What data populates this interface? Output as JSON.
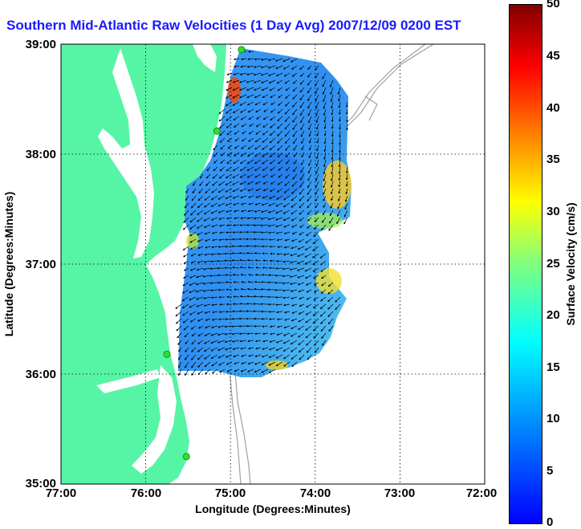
{
  "title": "Southern Mid-Atlantic Raw Velocities (1 Day Avg) 2007/12/09 0200 EST",
  "axes": {
    "xlabel": "Longitude (Degrees:Minutes)",
    "ylabel": "Latitude (Degrees:Minutes)",
    "x_ticks": [
      "77:00",
      "76:00",
      "75:00",
      "74:00",
      "73:00",
      "72:00"
    ],
    "y_ticks": [
      "39:00",
      "38:00",
      "37:00",
      "36:00",
      "35:00"
    ],
    "lon_range": [
      -77,
      -72
    ],
    "lat_range": [
      35,
      39
    ],
    "grid": "dotted"
  },
  "colorbar": {
    "label": "Surface Velocity (cm/s)",
    "ticks": [
      "50",
      "45",
      "40",
      "35",
      "30",
      "25",
      "20",
      "15",
      "10",
      "5",
      "0"
    ],
    "range": [
      0,
      50
    ],
    "colormap": "jet"
  },
  "colors": {
    "land": "#55f5a5",
    "water": "#ffffff",
    "title": "#1a1aff",
    "bathymetry": "#a0a0a0",
    "station": "#2ee02e"
  },
  "stations": [
    {
      "lon": -74.87,
      "lat": 38.95
    },
    {
      "lon": -75.16,
      "lat": 38.21
    },
    {
      "lon": -75.75,
      "lat": 36.18
    },
    {
      "lon": -75.52,
      "lat": 35.25
    }
  ]
}
